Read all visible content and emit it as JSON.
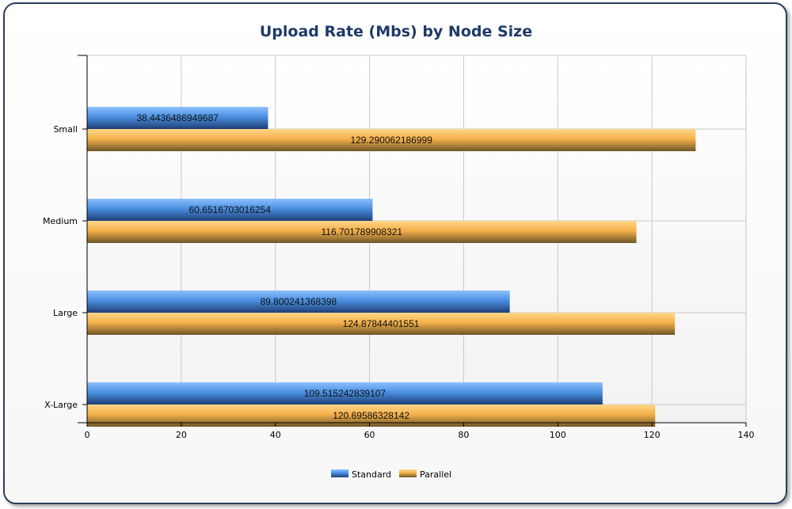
{
  "chart_data": {
    "type": "bar",
    "orientation": "horizontal",
    "title": "Upload Rate (Mbs) by Node Size",
    "categories": [
      "Small",
      "Medium",
      "Large",
      "X-Large"
    ],
    "series": [
      {
        "name": "Standard",
        "color": "#4a8fe0",
        "values": [
          38.4436486949687,
          60.6516703016254,
          89.800241368398,
          109.515242839107
        ],
        "labels": [
          "38.4436486949687",
          "60.6516703016254",
          "89.800241368398",
          "109.515242839107"
        ]
      },
      {
        "name": "Parallel",
        "color": "#f5b04a",
        "values": [
          129.290062186999,
          116.701789908321,
          124.87844401551,
          120.69586328142
        ],
        "labels": [
          "129.290062186999",
          "116.701789908321",
          "124.87844401551",
          "120.69586328142"
        ]
      }
    ],
    "xlim": [
      0,
      140
    ],
    "xticks": [
      0,
      20,
      40,
      60,
      80,
      100,
      120,
      140
    ],
    "xtick_labels": [
      "0",
      "20",
      "40",
      "60",
      "80",
      "100",
      "120",
      "140"
    ],
    "grid": true,
    "legend_position": "bottom-center"
  }
}
